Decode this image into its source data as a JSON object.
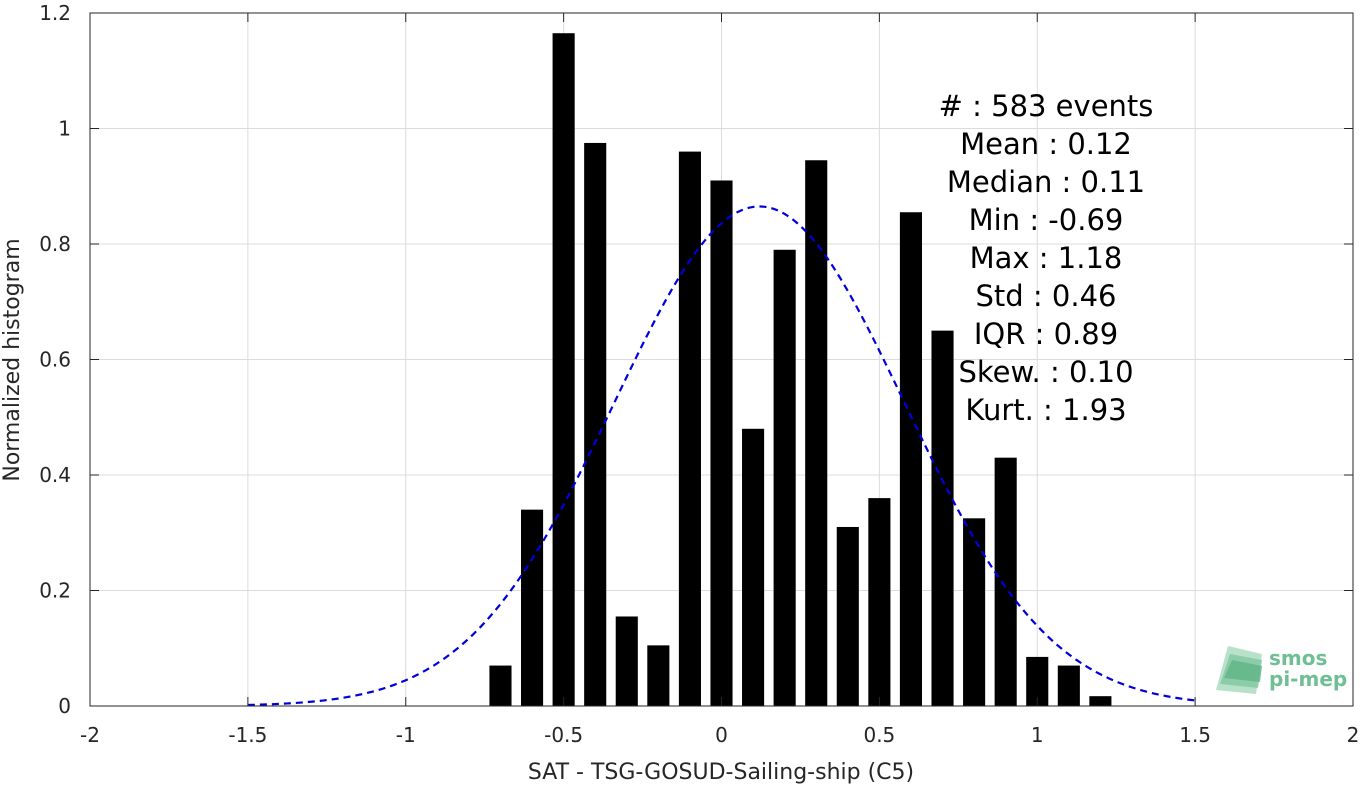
{
  "chart_data": {
    "type": "bar",
    "xlabel": "SAT - TSG-GOSUD-Sailing-ship (C5)",
    "ylabel": "Normalized histogram",
    "xlim": [
      -2,
      2
    ],
    "ylim": [
      0,
      1.2
    ],
    "xticks": [
      -2,
      -1.5,
      -1,
      -0.5,
      0,
      0.5,
      1,
      1.5,
      2
    ],
    "xtick_labels": [
      "-2",
      "-1.5",
      "-1",
      "-0.5",
      "0",
      "0.5",
      "1",
      "1.5",
      "2"
    ],
    "yticks": [
      0,
      0.2,
      0.4,
      0.6,
      0.8,
      1,
      1.2
    ],
    "ytick_labels": [
      "0",
      "0.2",
      "0.4",
      "0.6",
      "0.8",
      "1",
      "1.2"
    ],
    "grid": true,
    "bar_color": "#000000",
    "bar_width": 0.07,
    "bars": {
      "x": [
        -0.7,
        -0.6,
        -0.5,
        -0.4,
        -0.3,
        -0.2,
        -0.1,
        0.0,
        0.1,
        0.2,
        0.3,
        0.4,
        0.5,
        0.6,
        0.7,
        0.8,
        0.9,
        1.0,
        1.1,
        1.2
      ],
      "values": [
        0.07,
        0.34,
        1.165,
        0.975,
        0.155,
        0.105,
        0.96,
        0.91,
        0.48,
        0.79,
        0.945,
        0.31,
        0.36,
        0.855,
        0.65,
        0.325,
        0.43,
        0.085,
        0.07,
        0.017
      ]
    },
    "fit_curve": {
      "style": "dashed",
      "color": "#0000dd",
      "mean": 0.12,
      "std": 0.46,
      "peak": 0.865,
      "x_range": [
        -1.5,
        1.5
      ]
    },
    "stats_lines": [
      "#  : 583 events",
      "Mean : 0.12",
      "Median : 0.11",
      "Min : -0.69",
      "Max : 1.18",
      "Std : 0.46",
      "IQR : 0.89",
      "Skew. : 0.10",
      "Kurt. : 1.93"
    ]
  },
  "logo": {
    "line1": "smos",
    "line2": "pi-mep",
    "color": "#6fbf94"
  }
}
